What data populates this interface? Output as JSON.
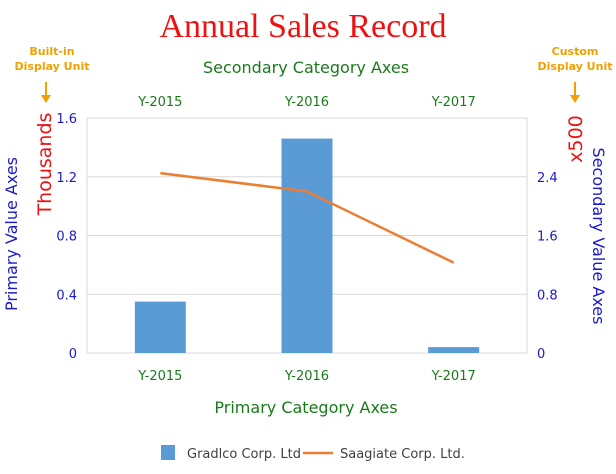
{
  "chart_data": {
    "type": "bar",
    "title": "Annual Sales Record",
    "categories": [
      "Y-2015",
      "Y-2016",
      "Y-2017"
    ],
    "series": [
      {
        "name": "Gradlco Corp. Ltd",
        "type": "bar",
        "axis": "primary",
        "values": [
          0.35,
          1.46,
          0.04
        ]
      },
      {
        "name": "Saagiate Corp. Ltd.",
        "type": "line",
        "axis": "secondary",
        "values": [
          2.45,
          2.2,
          1.23
        ]
      }
    ],
    "primary_category_axis_title": "Primary Category Axes",
    "secondary_category_axis_title": "Secondary Category Axes",
    "primary_value_axis_title": "Primary Value Axes",
    "secondary_value_axis_title": "Secondary Value Axes",
    "primary_display_unit": "Thousands",
    "secondary_display_unit": "x500",
    "primary_ylim": [
      0,
      1.6
    ],
    "primary_ticks": [
      "0",
      "0.4",
      "0.8",
      "1.2",
      "1.6"
    ],
    "secondary_ylim": [
      0,
      3.2
    ],
    "secondary_ticks": [
      "0",
      "0.8",
      "1.6",
      "2.4"
    ],
    "annotations": {
      "left": [
        "Built-in",
        "Display Unit"
      ],
      "right": [
        "Custom",
        "Display Unit"
      ]
    },
    "grid": true,
    "legend_position": "bottom"
  },
  "colors": {
    "title": "#ee1111",
    "category_axis_text": "#1a7a1a",
    "value_axis_text": "#1a1acc",
    "unit_text": "#ee1111",
    "annotation": "#f0a000",
    "bar": "#5b9bd5",
    "line": "#ed7d31",
    "grid": "#d9d9d9"
  }
}
